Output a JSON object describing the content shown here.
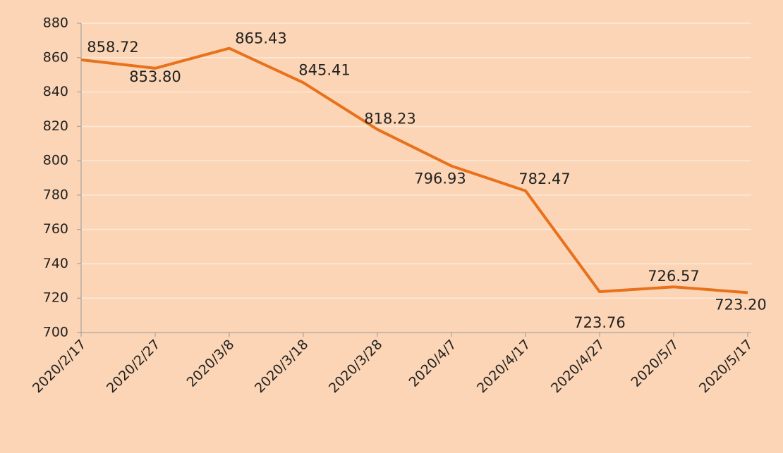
{
  "chart_data": {
    "type": "line",
    "categories": [
      "2020/2/17",
      "2020/2/27",
      "2020/3/8",
      "2020/3/18",
      "2020/3/28",
      "2020/4/7",
      "2020/4/17",
      "2020/4/27",
      "2020/5/7",
      "2020/5/17"
    ],
    "series": [
      {
        "color": "#e8711c",
        "values": [
          858.72,
          853.8,
          865.43,
          845.41,
          818.23,
          796.93,
          782.47,
          723.76,
          726.57,
          723.2
        ],
        "value_labels": [
          "858.72",
          "853.80",
          "865.43",
          "845.41",
          "818.23",
          "796.93",
          "782.47",
          "723.76",
          "726.57",
          "723.20"
        ]
      }
    ],
    "ylim": [
      700,
      880
    ],
    "yticks": [
      700,
      720,
      740,
      760,
      780,
      800,
      820,
      840,
      860,
      880
    ],
    "grid": true
  }
}
